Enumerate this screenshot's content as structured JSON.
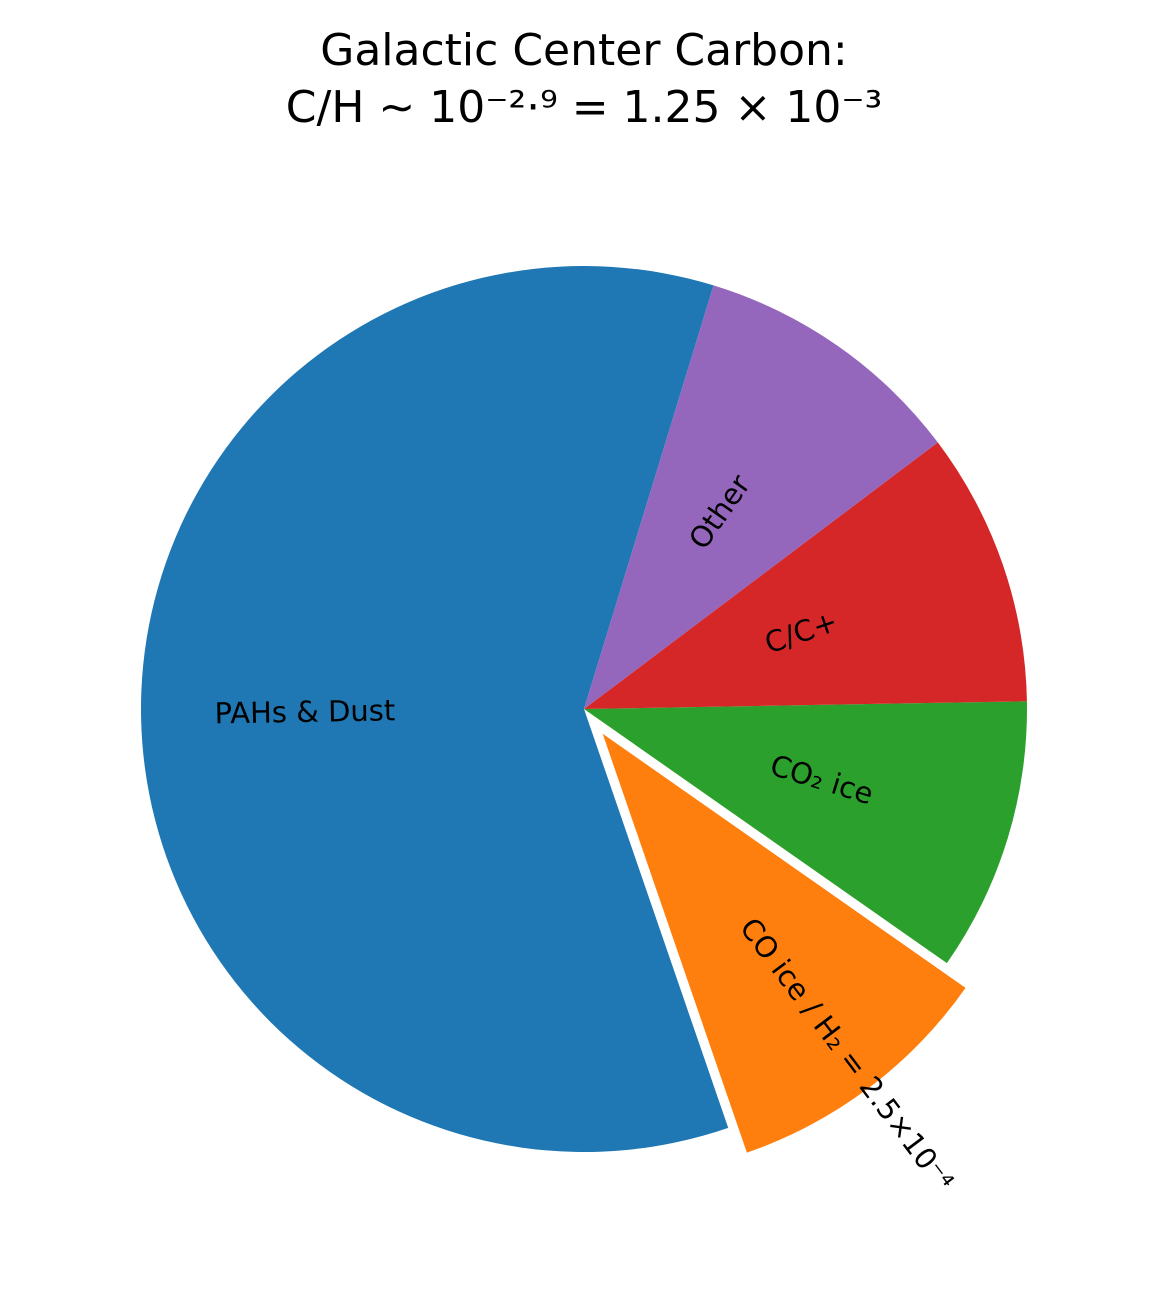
{
  "chart_data": {
    "type": "pie",
    "title": "Galactic Center Carbon:\nC/H ∼ 10⁻²·⁹ = 1.25 × 10⁻³",
    "categories": [
      "PAHs & Dust",
      "CO ice / H₂ = 2.5×10⁻⁴",
      "CO₂ ice",
      "C/C+",
      "Other"
    ],
    "values": [
      60,
      10,
      10,
      10,
      10
    ],
    "colors": [
      "#1f77b4",
      "#ff7f0e",
      "#2ca02c",
      "#d62728",
      "#9467bd"
    ],
    "explode": [
      0,
      0.07,
      0,
      0,
      0
    ],
    "startangle": 73,
    "rotatelabels": true
  }
}
